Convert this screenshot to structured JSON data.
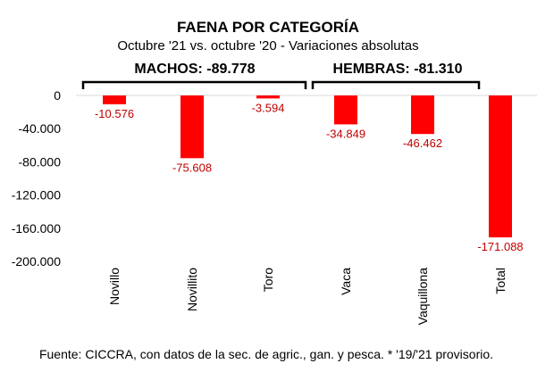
{
  "chart_data": {
    "type": "bar",
    "title": "FAENA POR CATEGORÍA",
    "subtitle": "Octubre '21 vs. octubre '20 - Variaciones absolutas",
    "categories": [
      "Novillo",
      "Novillito",
      "Toro",
      "Vaca",
      "Vaquillona",
      "Total"
    ],
    "values": [
      -10576,
      -75608,
      -3594,
      -34849,
      -46462,
      -171088
    ],
    "data_labels": [
      "-10.576",
      "-75.608",
      "-3.594",
      "-34.849",
      "-46.462",
      "-171.088"
    ],
    "ylim": [
      -200000,
      0
    ],
    "yticks": [
      0,
      -40000,
      -80000,
      -120000,
      -160000,
      -200000
    ],
    "ytick_labels": [
      "0",
      "-40.000",
      "-80.000",
      "-120.000",
      "-160.000",
      "-200.000"
    ],
    "grid": false,
    "groups": [
      {
        "label": "MACHOS: -89.778",
        "categories": [
          "Novillo",
          "Novillito",
          "Toro"
        ]
      },
      {
        "label": "HEMBRAS: -81.310",
        "categories": [
          "Vaca",
          "Vaquillona"
        ]
      }
    ],
    "colors": {
      "bar": "#ff0000",
      "label": "#c00000",
      "axis": "#000000"
    }
  },
  "source": "Fuente: CICCRA, con datos de la sec. de agric., gan. y pesca. * '19/'21 provisorio."
}
